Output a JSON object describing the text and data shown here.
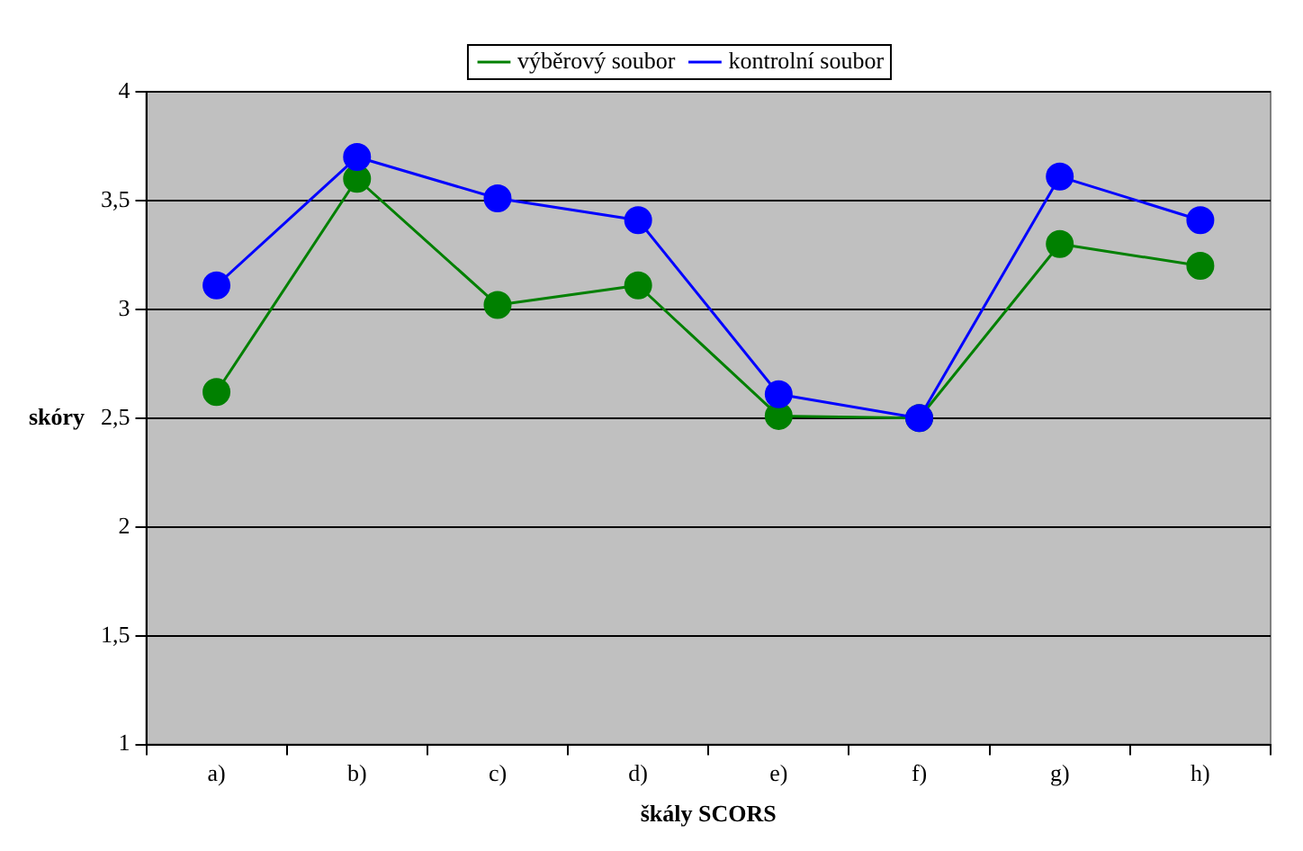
{
  "chart_data": {
    "type": "line",
    "xlabel": "škály SCORS",
    "ylabel": "skóry",
    "categories": [
      "a)",
      "b)",
      "c)",
      "d)",
      "e)",
      "f)",
      "g)",
      "h)"
    ],
    "series": [
      {
        "name": "výběrový soubor",
        "color": "#008000",
        "values": [
          2.62,
          3.6,
          3.02,
          3.11,
          2.51,
          2.5,
          3.3,
          3.2
        ]
      },
      {
        "name": "kontrolní soubor",
        "color": "#0000ff",
        "values": [
          3.11,
          3.7,
          3.51,
          3.41,
          2.61,
          2.5,
          3.61,
          3.41
        ]
      }
    ],
    "ylim": [
      1,
      4
    ],
    "yticks": [
      1,
      {
        "value": 1.5,
        "label": "1,5"
      },
      2,
      {
        "value": 2.5,
        "label": "2,5"
      },
      3,
      {
        "value": 3.5,
        "label": "3,5"
      },
      4
    ],
    "grid": "y",
    "legend": "top",
    "marker": "circle",
    "line_style": "solid"
  }
}
